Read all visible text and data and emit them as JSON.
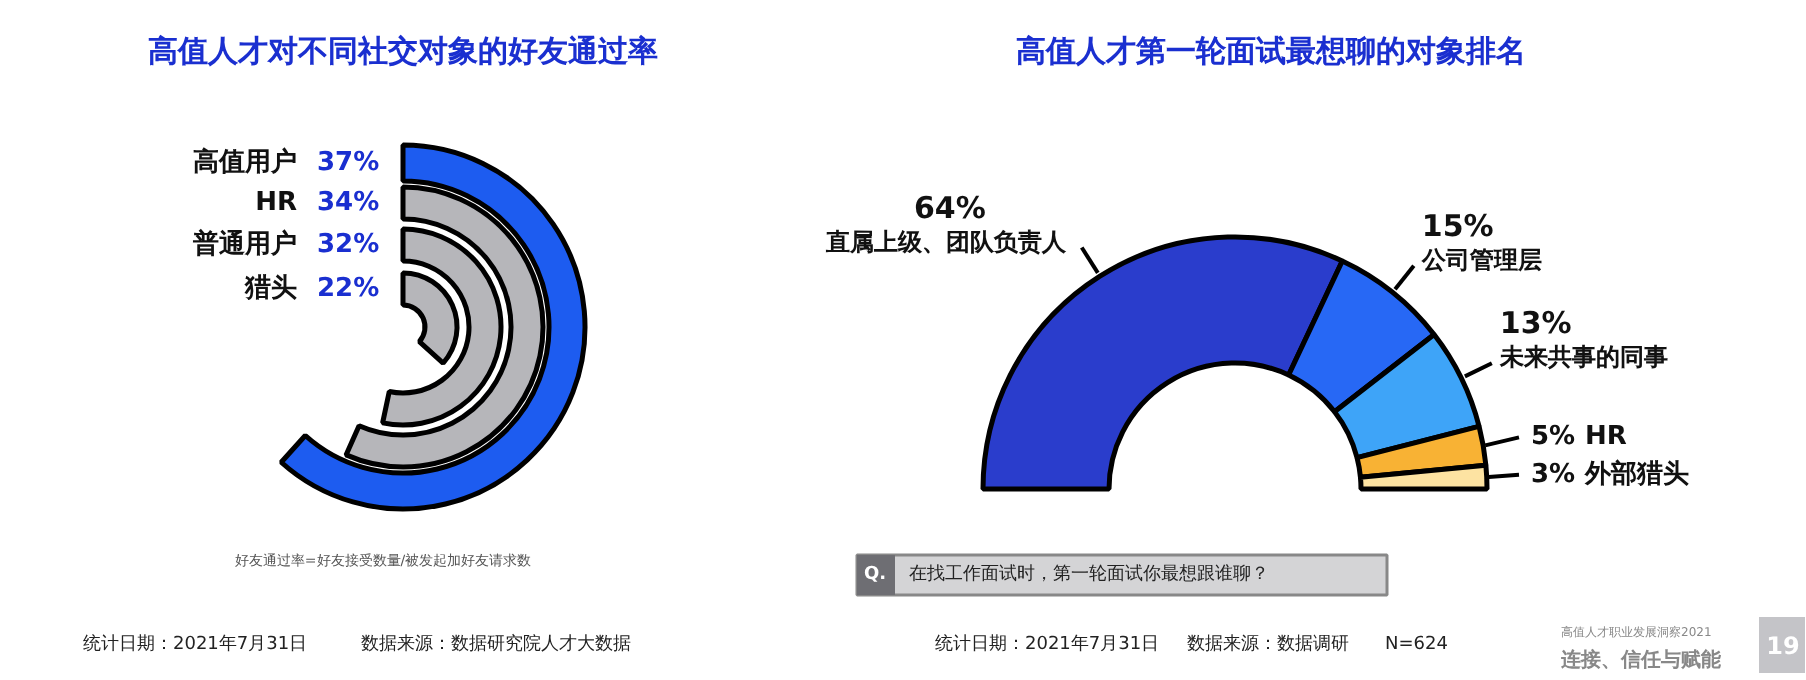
{
  "chart_data": [
    {
      "type": "other",
      "title": "高值人才对不同社交对象的好友通过率",
      "categories": [
        "高值用户",
        "HR",
        "普通用户",
        "猎头"
      ],
      "values": [
        37,
        34,
        32,
        22
      ],
      "value_labels": [
        "37%",
        "34%",
        "32%",
        "22%"
      ],
      "colors": [
        "#1d5cf0",
        "#b6b6ba",
        "#b6b6ba",
        "#b6b6ba"
      ],
      "annotations": [
        "好友通过率=好友接受数量/被发起加好友请求数",
        "统计日期：2021年7月31日",
        "数据来源：数据研究院人才大数据"
      ]
    },
    {
      "type": "donut",
      "title": "高值人才第一轮面试最想聊的对象排名",
      "categories": [
        "直属上级、团队负责人",
        "公司管理层",
        "未来共事的同事",
        "HR",
        "外部猎头"
      ],
      "values": [
        64,
        15,
        13,
        5,
        3
      ],
      "value_labels": [
        "64%",
        "15%",
        "13%",
        "5%",
        "3%"
      ],
      "colors": [
        "#2a3dcc",
        "#2768f5",
        "#3ea4f8",
        "#f8b234",
        "#fde3a2"
      ],
      "annotations": [
        "Q.",
        "在找工作面试时，第一轮面试你最想跟谁聊？",
        "统计日期：2021年7月31日",
        "数据来源：数据调研",
        "N=624",
        "高值人才职业发展洞察2021",
        "连接、信任与赋能",
        "19"
      ]
    }
  ]
}
